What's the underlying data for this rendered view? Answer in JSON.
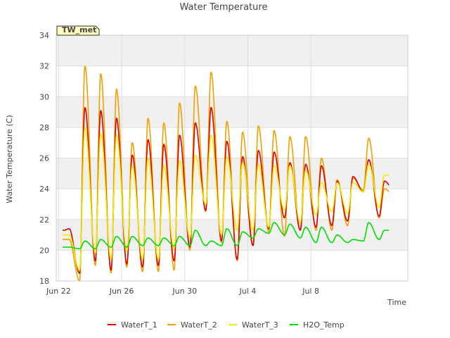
{
  "chart_data": {
    "type": "line",
    "title": "Water Temperature",
    "xlabel": "Time",
    "ylabel": "Water Temperature (C)",
    "station_label": "TW_met",
    "x_start": "Jun 22",
    "x_range_days": [
      -0.15,
      22.15
    ],
    "ylim": [
      18,
      34
    ],
    "yticks": [
      18,
      20,
      22,
      24,
      26,
      28,
      30,
      32,
      34
    ],
    "xticks": [
      {
        "day": 0,
        "label": "Jun 22"
      },
      {
        "day": 4,
        "label": "Jun 26"
      },
      {
        "day": 8,
        "label": "Jun 30"
      },
      {
        "day": 12,
        "label": "Jul 4"
      },
      {
        "day": 16,
        "label": "Jul 8"
      }
    ],
    "grid": true,
    "legend_position": "bottom",
    "series": [
      {
        "name": "WaterT_1",
        "color": "#dd0000",
        "daily_min": [
          21.3,
          18.5,
          19.3,
          18.7,
          19.1,
          18.9,
          19.0,
          19.3,
          20.2,
          22.6,
          20.6,
          19.4,
          20.3,
          21.4,
          22.1,
          21.3,
          21.5,
          21.6,
          21.9,
          23.8,
          22.2,
          23.8
        ],
        "daily_max": [
          21.4,
          29.3,
          29.1,
          28.6,
          26.2,
          27.2,
          26.9,
          27.5,
          28.3,
          29.3,
          27.1,
          26.1,
          26.5,
          26.4,
          25.7,
          25.6,
          25.5,
          24.5,
          24.8,
          25.9,
          24.5,
          23.8
        ]
      },
      {
        "name": "WaterT_2",
        "color": "#f0a000",
        "daily_min": [
          20.7,
          18.0,
          19.0,
          18.5,
          18.9,
          18.6,
          18.6,
          18.7,
          20.0,
          22.5,
          20.5,
          19.3,
          20.3,
          21.2,
          20.9,
          21.3,
          21.3,
          21.3,
          21.6,
          23.9,
          22.1,
          23.5
        ],
        "daily_max": [
          20.7,
          32.0,
          31.5,
          30.5,
          27.0,
          28.6,
          28.3,
          29.6,
          30.7,
          31.6,
          28.4,
          27.7,
          28.1,
          27.8,
          27.4,
          27.4,
          26.0,
          24.6,
          24.7,
          27.3,
          24.0,
          23.5
        ]
      },
      {
        "name": "WaterT_3",
        "color": "#eeee00",
        "daily_min": [
          21.0,
          18.7,
          19.8,
          19.4,
          19.9,
          19.4,
          19.4,
          20.1,
          20.8,
          23.0,
          21.0,
          21.3,
          21.3,
          21.5,
          22.6,
          21.8,
          22.3,
          22.5,
          22.4,
          23.8,
          22.8,
          24.9
        ],
        "daily_max": [
          21.0,
          28.0,
          27.6,
          27.5,
          25.5,
          26.0,
          25.5,
          25.8,
          26.2,
          27.5,
          26.1,
          25.7,
          25.6,
          25.5,
          25.5,
          25.2,
          24.4,
          24.4,
          24.4,
          25.6,
          24.9,
          24.9
        ]
      },
      {
        "name": "H2O_Temp",
        "color": "#00dd00",
        "daily_min": [
          20.2,
          20.1,
          20.1,
          20.2,
          20.2,
          20.3,
          20.3,
          20.3,
          20.3,
          20.3,
          20.3,
          20.3,
          20.8,
          21.1,
          21.0,
          20.8,
          20.5,
          20.5,
          20.5,
          20.6,
          20.7,
          21.3
        ],
        "daily_max": [
          20.2,
          20.6,
          20.7,
          20.9,
          20.9,
          20.8,
          20.8,
          20.9,
          21.3,
          20.6,
          21.4,
          21.2,
          21.4,
          21.8,
          21.7,
          21.5,
          21.5,
          21.0,
          20.7,
          21.8,
          21.3,
          21.3
        ]
      }
    ]
  }
}
